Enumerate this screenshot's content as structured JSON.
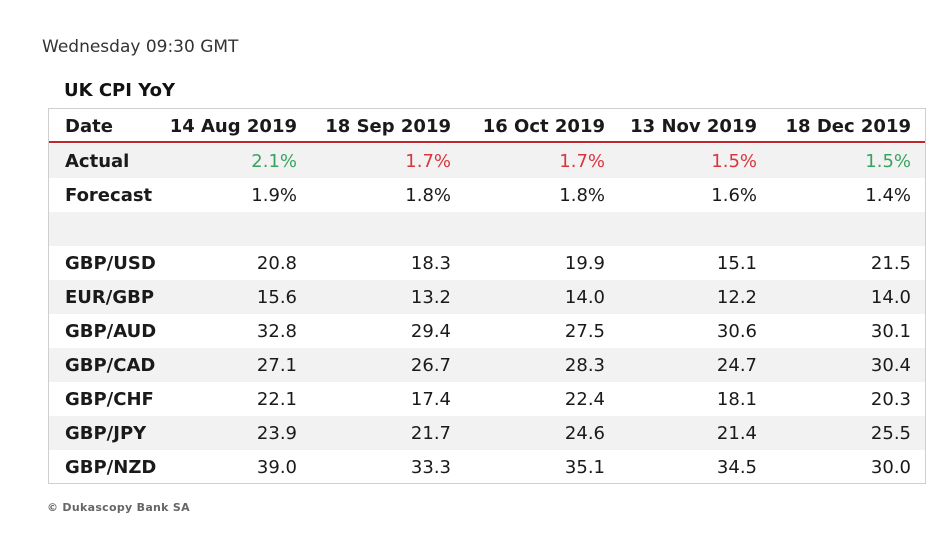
{
  "header": {
    "time_label": "Wednesday 09:30 GMT"
  },
  "table": {
    "title": "UK CPI YoY",
    "columns": [
      "Date",
      "14 Aug 2019",
      "18 Sep 2019",
      "16 Oct 2019",
      "13 Nov 2019",
      "18 Dec 2019"
    ],
    "rows": [
      {
        "label": "Actual",
        "values": [
          "2.1%",
          "1.7%",
          "1.7%",
          "1.5%",
          "1.5%"
        ],
        "value_colors": [
          "green",
          "red",
          "red",
          "red",
          "green"
        ]
      },
      {
        "label": "Forecast",
        "values": [
          "1.9%",
          "1.8%",
          "1.8%",
          "1.6%",
          "1.4%"
        ]
      },
      {
        "label": "",
        "values": [
          "",
          "",
          "",
          "",
          ""
        ]
      },
      {
        "label": "GBP/USD",
        "values": [
          "20.8",
          "18.3",
          "19.9",
          "15.1",
          "21.5"
        ]
      },
      {
        "label": "EUR/GBP",
        "values": [
          "15.6",
          "13.2",
          "14.0",
          "12.2",
          "14.0"
        ]
      },
      {
        "label": "GBP/AUD",
        "values": [
          "32.8",
          "29.4",
          "27.5",
          "30.6",
          "30.1"
        ]
      },
      {
        "label": "GBP/CAD",
        "values": [
          "27.1",
          "26.7",
          "28.3",
          "24.7",
          "30.4"
        ]
      },
      {
        "label": "GBP/CHF",
        "values": [
          "22.1",
          "17.4",
          "22.4",
          "18.1",
          "20.3"
        ]
      },
      {
        "label": "GBP/JPY",
        "values": [
          "23.9",
          "21.7",
          "24.6",
          "21.4",
          "25.5"
        ]
      },
      {
        "label": "GBP/NZD",
        "values": [
          "39.0",
          "33.3",
          "35.1",
          "34.5",
          "30.0"
        ]
      }
    ]
  },
  "colors": {
    "header_rule": "#c0262b",
    "positive": "#3aa35f",
    "negative": "#d9363e",
    "stripe": "#f2f2f2"
  },
  "footer": {
    "copyright": "© Dukascopy Bank SA"
  }
}
